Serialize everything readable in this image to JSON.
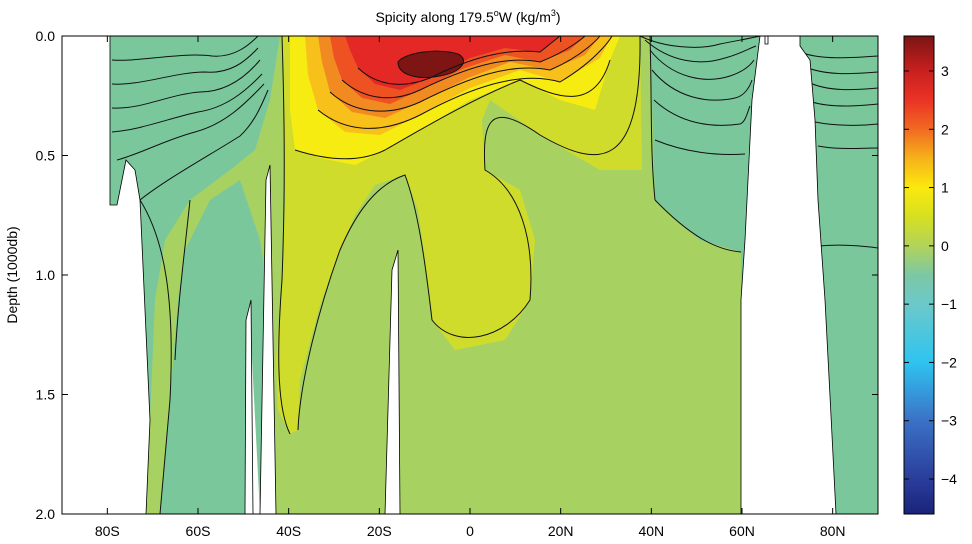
{
  "chart_data": {
    "type": "heatmap",
    "title_parts": {
      "prefix": "Spicity along 179.5",
      "deg": "o",
      "mid": "W (kg/m",
      "exp": "3",
      "suffix": ")"
    },
    "ylabel": "Depth (1000db)",
    "xlabel": "",
    "xlim": [
      -90,
      90
    ],
    "ylim": [
      0,
      2.0
    ],
    "x_ticks": [
      {
        "value": -80,
        "label": "80S"
      },
      {
        "value": -60,
        "label": "60S"
      },
      {
        "value": -40,
        "label": "40S"
      },
      {
        "value": -20,
        "label": "20S"
      },
      {
        "value": 0,
        "label": "0"
      },
      {
        "value": 20,
        "label": "20N"
      },
      {
        "value": 40,
        "label": "40N"
      },
      {
        "value": 60,
        "label": "60N"
      },
      {
        "value": 80,
        "label": "80N"
      }
    ],
    "y_ticks": [
      {
        "value": 0.0,
        "label": "0.0"
      },
      {
        "value": 0.5,
        "label": "0.5"
      },
      {
        "value": 1.0,
        "label": "1.0"
      },
      {
        "value": 1.5,
        "label": "1.5"
      },
      {
        "value": 2.0,
        "label": "2.0"
      }
    ],
    "colorbar": {
      "range": [
        -4.6,
        3.6
      ],
      "ticks": [
        {
          "value": 3,
          "label": "3"
        },
        {
          "value": 2,
          "label": "2"
        },
        {
          "value": 1,
          "label": "1"
        },
        {
          "value": 0,
          "label": "0"
        },
        {
          "value": -1,
          "label": "−1"
        },
        {
          "value": -2,
          "label": "−2"
        },
        {
          "value": -3,
          "label": "−3"
        },
        {
          "value": -4,
          "label": "−4"
        }
      ],
      "stops": [
        {
          "v": -4.6,
          "c": "#1a237a"
        },
        {
          "v": -4.0,
          "c": "#2a3d9b"
        },
        {
          "v": -3.0,
          "c": "#3b71c6"
        },
        {
          "v": -2.0,
          "c": "#2ec4f0"
        },
        {
          "v": -1.0,
          "c": "#6cc9c9"
        },
        {
          "v": -0.5,
          "c": "#7cc8a4"
        },
        {
          "v": 0.0,
          "c": "#b2d35a"
        },
        {
          "v": 0.5,
          "c": "#d6e020"
        },
        {
          "v": 1.0,
          "c": "#fbe90e"
        },
        {
          "v": 1.5,
          "c": "#f7b21a"
        },
        {
          "v": 2.0,
          "c": "#f16a22"
        },
        {
          "v": 2.5,
          "c": "#ea3325"
        },
        {
          "v": 3.0,
          "c": "#c8201f"
        },
        {
          "v": 3.6,
          "c": "#7b1414"
        }
      ]
    },
    "contour_levels": [
      -4,
      -3.5,
      -3,
      -2.5,
      -2,
      -1.5,
      -1,
      -0.5,
      0,
      0.5,
      1,
      1.5,
      2,
      2.5,
      3
    ],
    "region_fills": [
      {
        "name": "deep-green",
        "value": -0.6,
        "color": "#7ac79c"
      },
      {
        "name": "light-green",
        "value": -0.2,
        "color": "#a7d262"
      },
      {
        "name": "yellow-green",
        "value": 0.3,
        "color": "#cfdc2c"
      },
      {
        "name": "yellow",
        "value": 0.9,
        "color": "#f7ec12"
      },
      {
        "name": "orange-yellow",
        "value": 1.3,
        "color": "#f8c01b"
      },
      {
        "name": "orange",
        "value": 1.8,
        "color": "#f28a22"
      },
      {
        "name": "red-orange",
        "value": 2.3,
        "color": "#ee5223"
      },
      {
        "name": "red",
        "value": 2.8,
        "color": "#e32826"
      },
      {
        "name": "dark-red",
        "value": 3.3,
        "color": "#7d1515"
      }
    ]
  }
}
